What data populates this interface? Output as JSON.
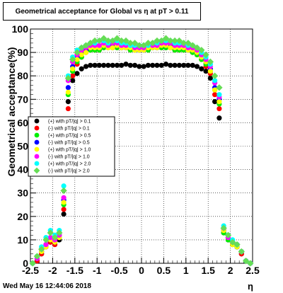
{
  "title": "Geometrical acceptance for Global vs  η at pT > 0.11",
  "footer": {
    "date": "Wed May 16 12:44:06 2018"
  },
  "chart_data": {
    "type": "scatter",
    "title": "Geometrical acceptance for Global vs  η at pT > 0.11",
    "xlabel": "η",
    "ylabel": "Geometrical acceptance(%)",
    "xlim": [
      -2.5,
      2.5
    ],
    "ylim": [
      0,
      100
    ],
    "x_ticks": [
      -2.5,
      -2,
      -1.5,
      -1,
      -0.5,
      0,
      0.5,
      1,
      1.5,
      2,
      2.5
    ],
    "x_tick_labels": [
      "-2.5",
      "-2",
      "-1.5",
      "-1",
      "-0.5",
      "0",
      "0.5",
      "1",
      "1.5",
      "2",
      "2.5"
    ],
    "y_ticks": [
      0,
      10,
      20,
      30,
      40,
      50,
      60,
      70,
      80,
      90,
      100
    ],
    "y_tick_labels": [
      "0",
      "10",
      "20",
      "30",
      "40",
      "50",
      "60",
      "70",
      "80",
      "90",
      "100"
    ],
    "grid": true,
    "legend_position": "middle-left",
    "x": [
      -2.45,
      -2.35,
      -2.25,
      -2.15,
      -2.05,
      -1.95,
      -1.85,
      -1.75,
      -1.65,
      -1.55,
      -1.45,
      -1.35,
      -1.25,
      -1.15,
      -1.05,
      -0.95,
      -0.85,
      -0.75,
      -0.65,
      -0.55,
      -0.45,
      -0.35,
      -0.25,
      -0.15,
      -0.05,
      0.05,
      0.15,
      0.25,
      0.35,
      0.45,
      0.55,
      0.65,
      0.75,
      0.85,
      0.95,
      1.05,
      1.15,
      1.25,
      1.35,
      1.45,
      1.55,
      1.65,
      1.75,
      1.85,
      1.95,
      2.05,
      2.15,
      2.25,
      2.35,
      2.45
    ],
    "series": [
      {
        "name": "(+) with pT/|q| > 0.1",
        "color": "#000000",
        "marker": "circle",
        "y": [
          0,
          1,
          4,
          7,
          9,
          8,
          10,
          21,
          69,
          78,
          81,
          83,
          84,
          84.5,
          84.5,
          84.5,
          84.5,
          84.5,
          84.5,
          84.5,
          84.5,
          85,
          84.5,
          84.5,
          84,
          84,
          84.5,
          84.5,
          84.5,
          84.5,
          85,
          84.5,
          84.5,
          84.5,
          84.5,
          84.5,
          84.5,
          84,
          83,
          82,
          79,
          69,
          62,
          13,
          10,
          8,
          7,
          4,
          1,
          0
        ]
      },
      {
        "name": "(-) with pT/|q| > 0.1",
        "color": "#ff0000",
        "marker": "circle",
        "y": [
          0,
          1,
          4,
          7,
          9,
          8,
          11,
          23,
          66,
          80,
          85,
          88,
          90,
          91,
          91,
          91,
          92,
          92,
          92,
          92,
          92,
          92,
          91,
          91,
          91,
          91,
          91,
          92,
          92,
          92,
          92,
          92,
          91,
          91,
          91,
          91,
          90,
          89,
          87,
          84,
          81,
          72,
          66,
          14,
          11,
          8,
          7,
          4,
          1,
          0
        ]
      },
      {
        "name": "(+) with pT/|q| > 0.5",
        "color": "#00ee00",
        "marker": "circle",
        "y": [
          0,
          2,
          5,
          8,
          10,
          9,
          11,
          25,
          72,
          82,
          86,
          88,
          90,
          91,
          91,
          91,
          92,
          92,
          92,
          92,
          92,
          92,
          91,
          91,
          91,
          91,
          91,
          92,
          92,
          92,
          92,
          92,
          91,
          91,
          91,
          91,
          90,
          89,
          87,
          85,
          82,
          74,
          68,
          13,
          10,
          8,
          7,
          5,
          1,
          0
        ]
      },
      {
        "name": "(-) with pT/|q| > 0.5",
        "color": "#0000ff",
        "marker": "circle",
        "y": [
          0,
          2,
          5,
          8,
          10,
          9,
          12,
          27,
          75,
          84,
          88,
          90,
          91,
          92,
          92,
          92,
          93,
          93,
          93,
          93,
          92,
          92,
          92,
          92,
          91,
          91,
          92,
          92,
          92,
          93,
          93,
          93,
          92,
          92,
          92,
          91,
          91,
          90,
          88,
          86,
          83,
          75,
          70,
          14,
          11,
          9,
          7,
          5,
          1,
          0
        ]
      },
      {
        "name": "(+) with pT/|q| > 1.0",
        "color": "#ffff00",
        "marker": "circle",
        "y": [
          0,
          2,
          5,
          7,
          10,
          9,
          11,
          26,
          73,
          83,
          87,
          89,
          90,
          92,
          92,
          92,
          93,
          92,
          92,
          93,
          92,
          92,
          92,
          91,
          91,
          91,
          92,
          92,
          92,
          93,
          93,
          92,
          92,
          92,
          92,
          91,
          91,
          90,
          88,
          86,
          82,
          74,
          69,
          14,
          11,
          8,
          7,
          5,
          1,
          0
        ]
      },
      {
        "name": "(-) with pT/|q| > 1.0",
        "color": "#ff00ff",
        "marker": "circle",
        "y": [
          0,
          2,
          6,
          8,
          11,
          10,
          12,
          28,
          78,
          86,
          89,
          91,
          92,
          93,
          93,
          93,
          94,
          93,
          94,
          94,
          93,
          93,
          93,
          92,
          92,
          92,
          93,
          93,
          93,
          94,
          94,
          94,
          93,
          93,
          93,
          92,
          92,
          91,
          89,
          87,
          84,
          77,
          71,
          15,
          11,
          9,
          8,
          5,
          1,
          0
        ]
      },
      {
        "name": "(+) with pT/|q| > 2.0",
        "color": "#00ffff",
        "marker": "circle",
        "y": [
          0,
          3,
          7,
          11,
          14,
          12,
          14,
          33,
          80,
          88,
          91,
          92,
          93,
          94,
          94,
          95,
          95,
          94,
          95,
          95,
          94,
          94,
          93,
          93,
          93,
          93,
          93,
          94,
          94,
          95,
          95,
          95,
          94,
          94,
          94,
          93,
          93,
          92,
          90,
          88,
          85,
          78,
          72,
          16,
          12,
          10,
          8,
          5,
          1,
          0
        ]
      },
      {
        "name": "(-) with pT/|q| > 2.0",
        "color": "#66dd55",
        "marker": "diamond",
        "y": [
          0,
          3,
          6,
          10,
          13,
          11,
          13,
          31,
          79,
          87,
          90,
          92,
          93,
          94,
          95,
          95,
          96,
          95,
          95,
          96,
          95,
          95,
          94,
          94,
          93,
          93,
          94,
          94,
          95,
          95,
          96,
          95,
          95,
          95,
          94,
          94,
          93,
          92,
          91,
          89,
          86,
          80,
          75,
          15,
          12,
          9,
          8,
          5,
          1,
          0
        ]
      }
    ]
  }
}
